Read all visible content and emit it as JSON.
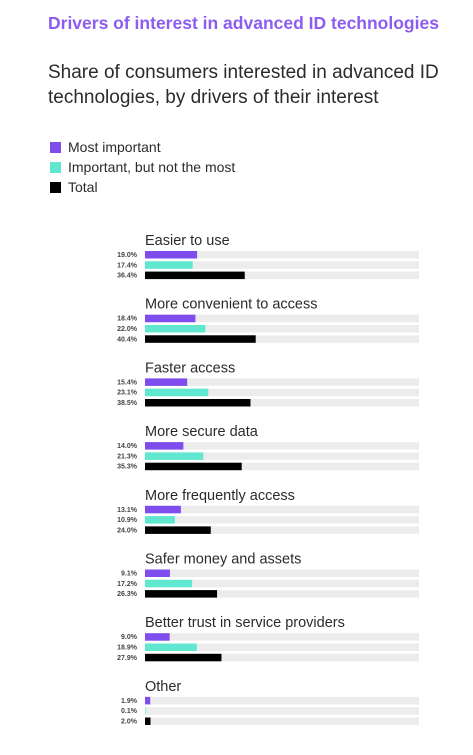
{
  "colors": {
    "most": "#7f4ded",
    "important": "#5fe8cf",
    "total": "#000000",
    "track": "#ececec",
    "title": "#8d5cf0"
  },
  "title": "Drivers of interest in advanced ID technologies",
  "subtitle": "Share of consumers interested in advanced ID technologies, by drivers of their interest",
  "legend": [
    {
      "label": "Most important",
      "color": "#7f4ded"
    },
    {
      "label": "Important, but not the most",
      "color": "#5fe8cf"
    },
    {
      "label": "Total",
      "color": "#000000"
    }
  ],
  "chart_data": {
    "type": "bar",
    "orientation": "horizontal",
    "xlim": [
      0,
      100
    ],
    "categories": [
      "Easier to use",
      "More convenient to access",
      "Faster access",
      "More secure data",
      "More frequently access",
      "Safer money and assets",
      "Better trust in service providers",
      "Other"
    ],
    "series": [
      {
        "name": "Most important",
        "values": [
          19.0,
          18.4,
          15.4,
          14.0,
          13.1,
          9.1,
          9.0,
          1.9
        ],
        "labels": [
          "19.0%",
          "18.4%",
          "15.4%",
          "14.0%",
          "13.1%",
          "9.1%",
          "9.0%",
          "1.9%"
        ]
      },
      {
        "name": "Important, but not the most",
        "values": [
          17.4,
          22.0,
          23.1,
          21.3,
          10.9,
          17.2,
          18.9,
          0.1
        ],
        "labels": [
          "17.4%",
          "22.0%",
          "23.1%",
          "21.3%",
          "10.9%",
          "17.2%",
          "18.9%",
          "0.1%"
        ]
      },
      {
        "name": "Total",
        "values": [
          36.4,
          40.4,
          38.5,
          35.3,
          24.0,
          26.3,
          27.9,
          2.0
        ],
        "labels": [
          "36.4%",
          "40.4%",
          "38.5%",
          "35.3%",
          "24.0%",
          "26.3%",
          "27.9%",
          "2.0%"
        ]
      }
    ]
  }
}
